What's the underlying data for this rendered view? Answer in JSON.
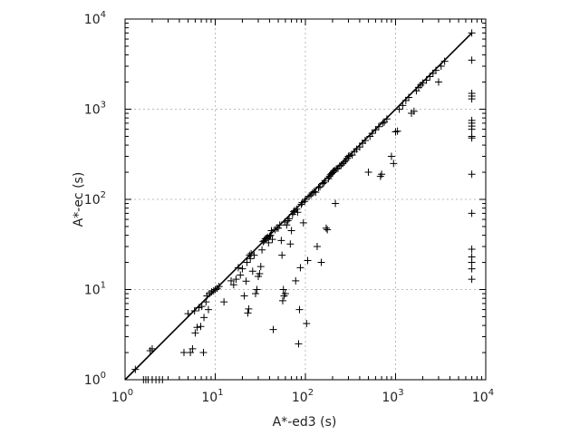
{
  "chart_data": {
    "type": "scatter",
    "title": "",
    "xlabel": "A*-ed3 (s)",
    "ylabel": "A*-ec (s)",
    "xscale": "log",
    "yscale": "log",
    "xlim": [
      1,
      10000
    ],
    "ylim": [
      1,
      10000
    ],
    "grid": true,
    "legend": "none",
    "marker": "plus",
    "colors": {
      "marker": "#000000",
      "grid": "#bbbbbb",
      "axes": "#000000",
      "diagonal": "#000000"
    },
    "x_ticks": [
      {
        "value": 1,
        "base": "10",
        "exp": "0"
      },
      {
        "value": 10,
        "base": "10",
        "exp": "1"
      },
      {
        "value": 100,
        "base": "10",
        "exp": "2"
      },
      {
        "value": 1000,
        "base": "10",
        "exp": "3"
      },
      {
        "value": 10000,
        "base": "10",
        "exp": "4"
      }
    ],
    "y_ticks": [
      {
        "value": 1,
        "base": "10",
        "exp": "0"
      },
      {
        "value": 10,
        "base": "10",
        "exp": "1"
      },
      {
        "value": 100,
        "base": "10",
        "exp": "2"
      },
      {
        "value": 1000,
        "base": "10",
        "exp": "3"
      },
      {
        "value": 10000,
        "base": "10",
        "exp": "4"
      }
    ],
    "reference_line": {
      "from": [
        1,
        1
      ],
      "to": [
        7000,
        7000
      ]
    },
    "series": [
      {
        "points": [
          [
            1.3,
            1.3
          ],
          [
            1.9,
            2.1
          ],
          [
            2.0,
            2.2
          ],
          [
            4.5,
            2.0
          ],
          [
            5.0,
            5.4
          ],
          [
            5.3,
            2.0
          ],
          [
            5.6,
            2.2
          ],
          [
            5.9,
            5.8
          ],
          [
            6.0,
            3.3
          ],
          [
            6.3,
            3.8
          ],
          [
            6.6,
            6.3
          ],
          [
            6.9,
            3.9
          ],
          [
            7.1,
            6.5
          ],
          [
            7.4,
            2.0
          ],
          [
            7.5,
            4.9
          ],
          [
            7.9,
            7.3
          ],
          [
            8.1,
            8.5
          ],
          [
            8.4,
            6.0
          ],
          [
            8.6,
            9.0
          ],
          [
            9.1,
            9.4
          ],
          [
            9.6,
            9.7
          ],
          [
            10,
            10
          ],
          [
            10.5,
            10.3
          ],
          [
            11,
            10.8
          ],
          [
            12.5,
            7.3
          ],
          [
            15,
            12.5
          ],
          [
            16,
            11.3
          ],
          [
            17,
            13
          ],
          [
            18,
            17.5
          ],
          [
            19,
            14.5
          ],
          [
            20,
            17
          ],
          [
            21,
            8.5
          ],
          [
            22,
            12.4
          ],
          [
            22.5,
            20
          ],
          [
            23,
            5.5
          ],
          [
            23.5,
            6.1
          ],
          [
            24,
            24
          ],
          [
            24.5,
            22
          ],
          [
            25,
            25
          ],
          [
            26,
            16
          ],
          [
            27,
            24
          ],
          [
            28,
            9
          ],
          [
            29,
            10
          ],
          [
            30,
            14
          ],
          [
            31,
            15
          ],
          [
            32,
            18
          ],
          [
            33,
            27.5
          ],
          [
            34,
            34
          ],
          [
            35,
            35
          ],
          [
            36,
            36.5
          ],
          [
            37,
            37
          ],
          [
            38,
            38
          ],
          [
            39,
            33
          ],
          [
            40,
            39
          ],
          [
            41,
            40
          ],
          [
            42,
            45
          ],
          [
            43,
            36
          ],
          [
            44,
            3.6
          ],
          [
            46,
            46
          ],
          [
            48,
            48
          ],
          [
            50,
            48
          ],
          [
            52,
            52
          ],
          [
            54,
            35
          ],
          [
            55,
            24
          ],
          [
            56,
            7.5
          ],
          [
            57,
            10
          ],
          [
            58,
            8.5
          ],
          [
            59,
            56
          ],
          [
            60,
            9
          ],
          [
            62,
            52
          ],
          [
            64,
            58
          ],
          [
            66,
            61
          ],
          [
            68,
            32
          ],
          [
            70,
            45
          ],
          [
            72,
            68
          ],
          [
            74,
            73
          ],
          [
            76,
            75
          ],
          [
            78,
            12.5
          ],
          [
            80,
            78
          ],
          [
            82,
            72
          ],
          [
            84,
            2.5
          ],
          [
            86,
            6
          ],
          [
            88,
            17.5
          ],
          [
            90,
            88
          ],
          [
            92,
            92
          ],
          [
            95,
            55
          ],
          [
            98,
            95
          ],
          [
            100,
            100
          ],
          [
            103,
            4.2
          ],
          [
            106,
            21
          ],
          [
            110,
            108
          ],
          [
            115,
            112
          ],
          [
            120,
            118
          ],
          [
            125,
            122
          ],
          [
            130,
            120
          ],
          [
            135,
            30
          ],
          [
            140,
            135
          ],
          [
            145,
            138
          ],
          [
            150,
            20
          ],
          [
            155,
            150
          ],
          [
            160,
            153
          ],
          [
            165,
            160
          ],
          [
            170,
            48
          ],
          [
            175,
            46
          ],
          [
            180,
            170
          ],
          [
            185,
            180
          ],
          [
            190,
            188
          ],
          [
            195,
            192
          ],
          [
            200,
            198
          ],
          [
            205,
            205
          ],
          [
            210,
            210
          ],
          [
            215,
            90
          ],
          [
            220,
            218
          ],
          [
            230,
            220
          ],
          [
            240,
            235
          ],
          [
            250,
            240
          ],
          [
            260,
            250
          ],
          [
            270,
            260
          ],
          [
            280,
            270
          ],
          [
            290,
            285
          ],
          [
            300,
            300
          ],
          [
            310,
            305
          ],
          [
            330,
            310
          ],
          [
            350,
            340
          ],
          [
            370,
            360
          ],
          [
            400,
            380
          ],
          [
            430,
            420
          ],
          [
            460,
            450
          ],
          [
            500,
            200
          ],
          [
            520,
            500
          ],
          [
            550,
            540
          ],
          [
            600,
            590
          ],
          [
            650,
            640
          ],
          [
            680,
            180
          ],
          [
            700,
            190
          ],
          [
            720,
            700
          ],
          [
            750,
            720
          ],
          [
            800,
            780
          ],
          [
            900,
            300
          ],
          [
            950,
            250
          ],
          [
            1000,
            560
          ],
          [
            1050,
            570
          ],
          [
            1100,
            1000
          ],
          [
            1200,
            1100
          ],
          [
            1300,
            1250
          ],
          [
            1400,
            1350
          ],
          [
            1500,
            900
          ],
          [
            1600,
            950
          ],
          [
            1700,
            1600
          ],
          [
            1800,
            1750
          ],
          [
            1900,
            1850
          ],
          [
            2000,
            1950
          ],
          [
            2200,
            2100
          ],
          [
            2400,
            2300
          ],
          [
            2600,
            2500
          ],
          [
            2800,
            2700
          ],
          [
            3000,
            2000
          ],
          [
            3200,
            3000
          ],
          [
            3500,
            3400
          ],
          [
            7000,
            3500
          ],
          [
            7000,
            1500
          ],
          [
            7000,
            1400
          ],
          [
            7000,
            1300
          ],
          [
            7000,
            750
          ],
          [
            7000,
            700
          ],
          [
            7000,
            650
          ],
          [
            7000,
            600
          ],
          [
            7000,
            500
          ],
          [
            7000,
            480
          ],
          [
            7000,
            190
          ],
          [
            7000,
            70
          ],
          [
            7000,
            28
          ],
          [
            7000,
            23
          ],
          [
            7000,
            20
          ],
          [
            7000,
            17
          ],
          [
            7000,
            13
          ],
          [
            7000,
            7000
          ],
          [
            1.6,
            1.0
          ],
          [
            1.7,
            1.0
          ],
          [
            1.8,
            1.0
          ],
          [
            2.0,
            1.0
          ],
          [
            2.2,
            1.0
          ],
          [
            2.4,
            1.0
          ],
          [
            2.6,
            1.0
          ]
        ]
      }
    ]
  }
}
